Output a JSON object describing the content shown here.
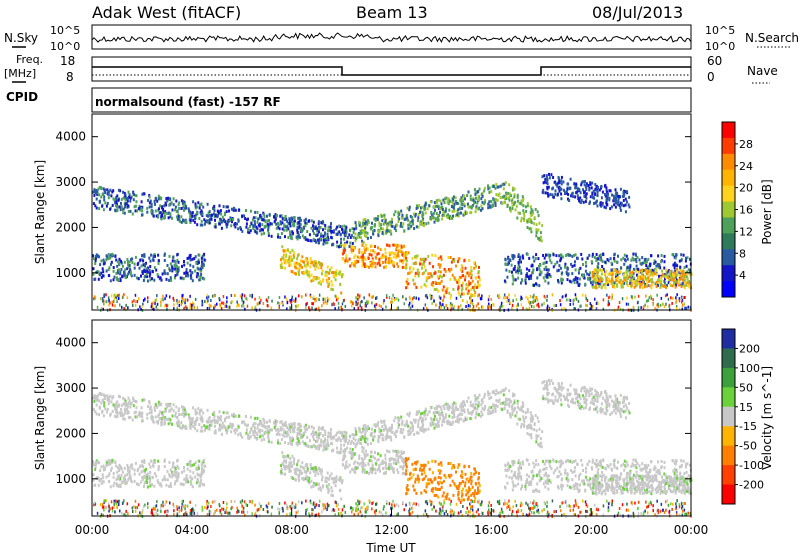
{
  "header": {
    "station": "Adak West (fitACF)",
    "beam": "Beam 13",
    "date": "08/Jul/2013"
  },
  "panels": {
    "nsky_label": "N.Sky",
    "nsky_ticks": [
      "10^5",
      "10^0"
    ],
    "nsearch_label": "N.Search",
    "nsearch_ticks": [
      "10^5",
      "10^0"
    ],
    "freq_label_line1": "Freq.",
    "freq_label_line2": "[MHz]",
    "freq_ticks": [
      "18",
      "8"
    ],
    "nave_label": "Nave",
    "nave_ticks": [
      "60",
      "0"
    ],
    "cpid_label": "CPID",
    "cpid_text": "normalsound (fast) -157 RF"
  },
  "chart_data": [
    {
      "type": "heatmap",
      "name": "power",
      "ylabel": "Slant Range [km]",
      "xlabel": "",
      "yticks": [
        "4000",
        "3000",
        "2000",
        "1000"
      ],
      "ylim": [
        180,
        4500
      ],
      "xlim": [
        0,
        24
      ],
      "colorbar_label": "Power [dB]",
      "colorbar_ticks": [
        "28",
        "24",
        "20",
        "16",
        "12",
        "8",
        "4"
      ],
      "colorbar_colors": [
        "#ff0000",
        "#ff3c00",
        "#ff8c00",
        "#ffb400",
        "#ffd21e",
        "#a0c832",
        "#4fa05a",
        "#2f7a5a",
        "#2a5aa0",
        "#1414c8",
        "#0000ff"
      ]
    },
    {
      "type": "heatmap",
      "name": "velocity",
      "ylabel": "Slant Range [km]",
      "xlabel": "Time UT",
      "yticks": [
        "4000",
        "3000",
        "2000",
        "1000"
      ],
      "ylim": [
        180,
        4500
      ],
      "xlim": [
        0,
        24
      ],
      "xticks": [
        "00:00",
        "04:00",
        "08:00",
        "12:00",
        "16:00",
        "20:00",
        "00:00"
      ],
      "colorbar_label": "Velocity [m s^-1]",
      "colorbar_ticks": [
        "200",
        "100",
        "50",
        "15",
        "-15",
        "-50",
        "-100",
        "-200"
      ],
      "colorbar_colors": [
        "#1e2ea0",
        "#2e6c4e",
        "#3ca03c",
        "#6cd23c",
        "#c8c8c8",
        "#ffb400",
        "#ff8000",
        "#ff4000",
        "#ff0000"
      ]
    }
  ]
}
